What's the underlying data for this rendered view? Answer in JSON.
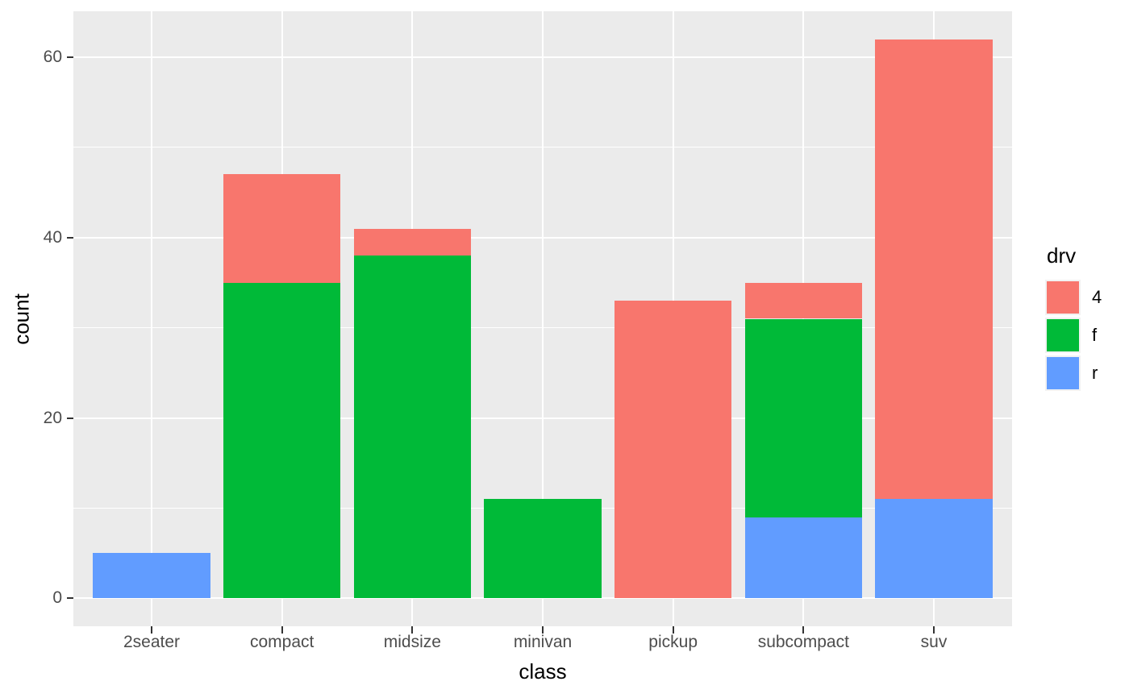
{
  "figure": {
    "background": "#FFFFFF",
    "panel_background": "#EBEBEB",
    "grid_color": "#FFFFFF",
    "tick_mark_color": "#333333",
    "tick_label_color": "#4D4D4D",
    "axis_title_color": "#000000"
  },
  "chart_data": {
    "type": "bar",
    "stacked": true,
    "orientation": "vertical",
    "title": "",
    "xlabel": "class",
    "ylabel": "count",
    "categories": [
      "2seater",
      "compact",
      "midsize",
      "minivan",
      "pickup",
      "subcompact",
      "suv"
    ],
    "series": [
      {
        "name": "4",
        "color": "#F8766D",
        "values": [
          0,
          12,
          3,
          0,
          33,
          4,
          51
        ]
      },
      {
        "name": "f",
        "color": "#00BA38",
        "values": [
          0,
          35,
          38,
          11,
          0,
          22,
          0
        ]
      },
      {
        "name": "r",
        "color": "#619CFF",
        "values": [
          5,
          0,
          0,
          0,
          0,
          9,
          11
        ]
      }
    ],
    "stack_order_bottom_up": [
      "r",
      "f",
      "4"
    ],
    "stack_totals": [
      5,
      47,
      41,
      11,
      33,
      35,
      62
    ],
    "y_ticks": [
      0,
      20,
      40,
      60
    ],
    "y_minor_ticks": [
      10,
      30,
      50
    ],
    "ylim": [
      -3.1,
      65.1
    ],
    "bar_width_fraction": 0.9,
    "x_edge_padding_slots": 0.6,
    "grid": true,
    "legend": {
      "title": "drv",
      "position": "right",
      "entries": [
        {
          "label": "4",
          "color": "#F8766D"
        },
        {
          "label": "f",
          "color": "#00BA38"
        },
        {
          "label": "r",
          "color": "#619CFF"
        }
      ]
    }
  }
}
